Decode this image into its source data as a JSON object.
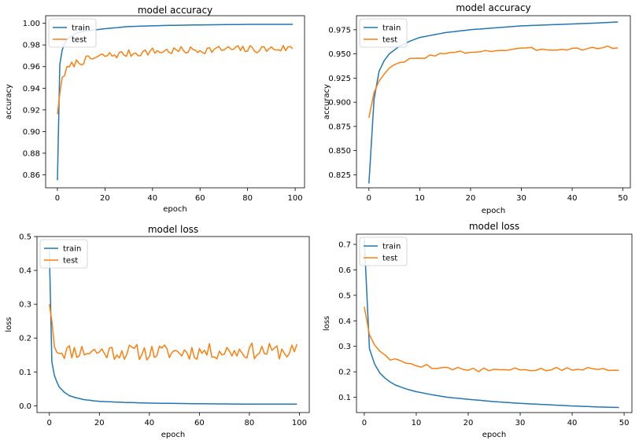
{
  "colors": {
    "train": "#1f77b4",
    "test": "#ff7f0e",
    "axis": "#000000"
  },
  "chart_data": [
    {
      "type": "line",
      "title": "model accuracy",
      "xlabel": "epoch",
      "ylabel": "accuracy",
      "xlim": [
        -4.95,
        103.95
      ],
      "ylim": [
        0.848,
        1.007
      ],
      "xticks": [
        0,
        20,
        40,
        60,
        80,
        100
      ],
      "xtick_labels": [
        "0",
        "20",
        "40",
        "60",
        "80",
        "100"
      ],
      "yticks": [
        0.86,
        0.88,
        0.9,
        0.92,
        0.94,
        0.96,
        0.98,
        1.0
      ],
      "ytick_labels": [
        "0.86",
        "0.88",
        "0.90",
        "0.92",
        "0.94",
        "0.96",
        "0.98",
        "1.00"
      ],
      "legend": {
        "position": "upper-left",
        "labels": [
          "train",
          "test"
        ]
      },
      "series": [
        {
          "name": "train",
          "style": "smooth",
          "x_start": 0,
          "x_end": 99,
          "points": [
            [
              0,
              0.855
            ],
            [
              1,
              0.962
            ],
            [
              2,
              0.975
            ],
            [
              3,
              0.982
            ],
            [
              5,
              0.987
            ],
            [
              8,
              0.991
            ],
            [
              12,
              0.993
            ],
            [
              20,
              0.995
            ],
            [
              30,
              0.997
            ],
            [
              45,
              0.998
            ],
            [
              60,
              0.9985
            ],
            [
              80,
              0.999
            ],
            [
              99,
              0.999
            ]
          ]
        },
        {
          "name": "test",
          "style": "noisy",
          "x_start": 0,
          "x_end": 99,
          "amp": 0.0018,
          "seed": 7,
          "points": [
            [
              0,
              0.916
            ],
            [
              1,
              0.935
            ],
            [
              2,
              0.95
            ],
            [
              4,
              0.957
            ],
            [
              7,
              0.963
            ],
            [
              12,
              0.966
            ],
            [
              20,
              0.97
            ],
            [
              30,
              0.972
            ],
            [
              40,
              0.974
            ],
            [
              55,
              0.975
            ],
            [
              70,
              0.976
            ],
            [
              85,
              0.976
            ],
            [
              99,
              0.977
            ]
          ]
        }
      ]
    },
    {
      "type": "line",
      "title": "model accuracy",
      "xlabel": "epoch",
      "ylabel": "accuracy",
      "xlim": [
        -2.45,
        51.45
      ],
      "ylim": [
        0.8115,
        0.9895
      ],
      "xticks": [
        0,
        10,
        20,
        30,
        40,
        50
      ],
      "xtick_labels": [
        "0",
        "10",
        "20",
        "30",
        "40",
        "50"
      ],
      "yticks": [
        0.825,
        0.85,
        0.875,
        0.9,
        0.925,
        0.95,
        0.975
      ],
      "ytick_labels": [
        "0.825",
        "0.850",
        "0.875",
        "0.900",
        "0.925",
        "0.950",
        "0.975"
      ],
      "legend": {
        "position": "upper-left",
        "labels": [
          "train",
          "test"
        ]
      },
      "series": [
        {
          "name": "train",
          "style": "smooth",
          "x_start": 0,
          "x_end": 49,
          "points": [
            [
              0,
              0.816
            ],
            [
              1,
              0.903
            ],
            [
              2,
              0.932
            ],
            [
              3,
              0.943
            ],
            [
              4,
              0.95
            ],
            [
              6,
              0.958
            ],
            [
              8,
              0.963
            ],
            [
              10,
              0.967
            ],
            [
              15,
              0.972
            ],
            [
              20,
              0.975
            ],
            [
              25,
              0.977
            ],
            [
              30,
              0.979
            ],
            [
              35,
              0.98
            ],
            [
              40,
              0.981
            ],
            [
              45,
              0.982
            ],
            [
              49,
              0.983
            ]
          ]
        },
        {
          "name": "test",
          "style": "noisy",
          "x_start": 0,
          "x_end": 49,
          "amp": 0.0009,
          "seed": 3,
          "points": [
            [
              0,
              0.884
            ],
            [
              1,
              0.91
            ],
            [
              2,
              0.922
            ],
            [
              3,
              0.93
            ],
            [
              4,
              0.935
            ],
            [
              6,
              0.94
            ],
            [
              8,
              0.944
            ],
            [
              10,
              0.946
            ],
            [
              13,
              0.949
            ],
            [
              17,
              0.951
            ],
            [
              22,
              0.953
            ],
            [
              27,
              0.954
            ],
            [
              32,
              0.955
            ],
            [
              38,
              0.955
            ],
            [
              44,
              0.956
            ],
            [
              49,
              0.957
            ]
          ]
        }
      ]
    },
    {
      "type": "line",
      "title": "model loss",
      "xlabel": "epoch",
      "ylabel": "loss",
      "xlim": [
        -4.95,
        103.95
      ],
      "ylim": [
        -0.02,
        0.5
      ],
      "xticks": [
        0,
        20,
        40,
        60,
        80,
        100
      ],
      "xtick_labels": [
        "0",
        "20",
        "40",
        "60",
        "80",
        "100"
      ],
      "yticks": [
        0.0,
        0.1,
        0.2,
        0.3,
        0.4,
        0.5
      ],
      "ytick_labels": [
        "0.0",
        "0.1",
        "0.2",
        "0.3",
        "0.4",
        "0.5"
      ],
      "legend": {
        "position": "upper-left",
        "labels": [
          "train",
          "test"
        ]
      },
      "series": [
        {
          "name": "train",
          "style": "smooth",
          "x_start": 0,
          "x_end": 99,
          "points": [
            [
              0,
              0.46
            ],
            [
              1,
              0.13
            ],
            [
              2,
              0.09
            ],
            [
              3,
              0.07
            ],
            [
              4,
              0.055
            ],
            [
              6,
              0.04
            ],
            [
              8,
              0.03
            ],
            [
              10,
              0.025
            ],
            [
              14,
              0.018
            ],
            [
              20,
              0.013
            ],
            [
              30,
              0.01
            ],
            [
              40,
              0.008
            ],
            [
              60,
              0.006
            ],
            [
              80,
              0.005
            ],
            [
              99,
              0.005
            ]
          ]
        },
        {
          "name": "test",
          "style": "noisy",
          "x_start": 0,
          "x_end": 99,
          "amp": 0.012,
          "seed": 11,
          "points": [
            [
              0,
              0.3
            ],
            [
              1,
              0.25
            ],
            [
              2,
              0.175
            ],
            [
              4,
              0.165
            ],
            [
              6,
              0.16
            ],
            [
              10,
              0.162
            ],
            [
              20,
              0.16
            ],
            [
              40,
              0.158
            ],
            [
              60,
              0.16
            ],
            [
              80,
              0.162
            ],
            [
              99,
              0.16
            ]
          ]
        }
      ]
    },
    {
      "type": "line",
      "title": "model loss",
      "xlabel": "epoch",
      "ylabel": "loss",
      "xlim": [
        -1.5,
        51.5
      ],
      "ylim": [
        0.04,
        0.74
      ],
      "xticks": [
        0,
        10,
        20,
        30,
        40,
        50
      ],
      "xtick_labels": [
        "0",
        "10",
        "20",
        "30",
        "40",
        "50"
      ],
      "yticks": [
        0.1,
        0.2,
        0.3,
        0.4,
        0.5,
        0.6,
        0.7
      ],
      "ytick_labels": [
        "0.1",
        "0.2",
        "0.3",
        "0.4",
        "0.5",
        "0.6",
        "0.7"
      ],
      "legend": {
        "position": "upper-left",
        "labels": [
          "train",
          "test"
        ]
      },
      "series": [
        {
          "name": "train",
          "style": "smooth",
          "x_start": 0,
          "x_end": 49,
          "points": [
            [
              0,
              0.72
            ],
            [
              1,
              0.29
            ],
            [
              2,
              0.23
            ],
            [
              3,
              0.195
            ],
            [
              4,
              0.175
            ],
            [
              5,
              0.16
            ],
            [
              6,
              0.148
            ],
            [
              8,
              0.133
            ],
            [
              10,
              0.122
            ],
            [
              13,
              0.11
            ],
            [
              16,
              0.1
            ],
            [
              20,
              0.092
            ],
            [
              25,
              0.083
            ],
            [
              30,
              0.076
            ],
            [
              35,
              0.071
            ],
            [
              40,
              0.066
            ],
            [
              45,
              0.062
            ],
            [
              49,
              0.06
            ]
          ]
        },
        {
          "name": "test",
          "style": "noisy",
          "x_start": 0,
          "x_end": 49,
          "amp": 0.004,
          "seed": 5,
          "points": [
            [
              0,
              0.455
            ],
            [
              1,
              0.345
            ],
            [
              2,
              0.305
            ],
            [
              3,
              0.285
            ],
            [
              4,
              0.262
            ],
            [
              5,
              0.25
            ],
            [
              7,
              0.24
            ],
            [
              10,
              0.228
            ],
            [
              13,
              0.22
            ],
            [
              16,
              0.215
            ],
            [
              20,
              0.208
            ],
            [
              25,
              0.206
            ],
            [
              30,
              0.208
            ],
            [
              35,
              0.209
            ],
            [
              40,
              0.21
            ],
            [
              45,
              0.211
            ],
            [
              49,
              0.212
            ]
          ]
        }
      ]
    }
  ]
}
